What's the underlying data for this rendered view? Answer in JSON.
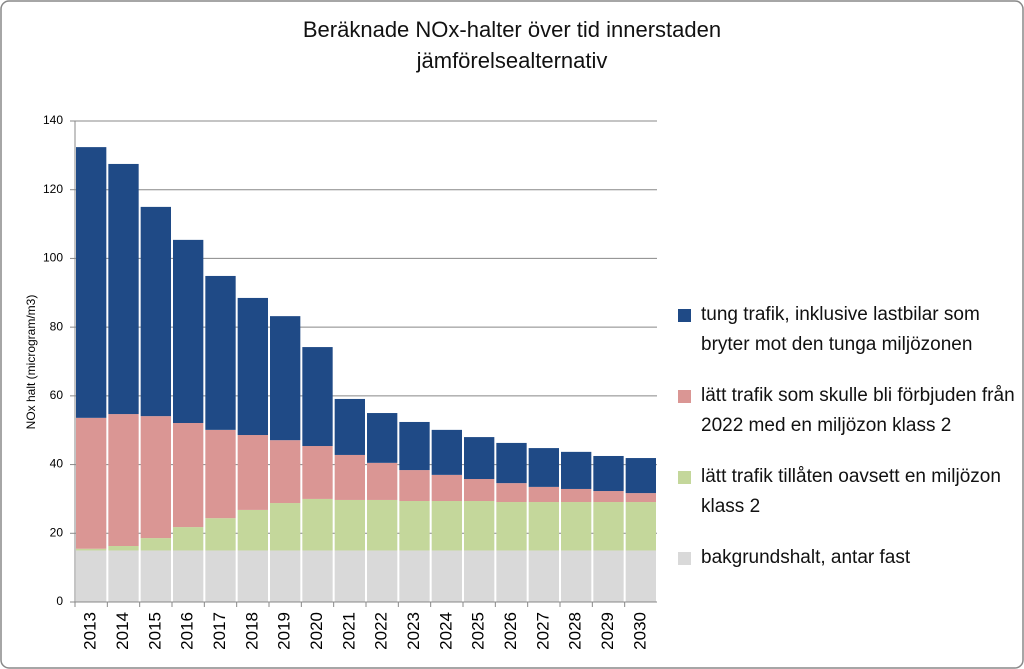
{
  "chart_data": {
    "type": "stacked_bar",
    "title": "Beräknade NOx-halter över tid innerstaden jämförelsealternativ",
    "y_label": "NOx halt (microgram/m3)",
    "categories": [
      "2013",
      "2014",
      "2015",
      "2016",
      "2017",
      "2018",
      "2019",
      "2020",
      "2021",
      "2022",
      "2023",
      "2024",
      "2025",
      "2026",
      "2027",
      "2028",
      "2029",
      "2030"
    ],
    "series": [
      {
        "name": "tung trafik, inklusive lastbilar som bryter mot den tunga miljözonen",
        "color": "#1f4a86",
        "values": [
          78.8,
          72.8,
          60.9,
          53.3,
          44.8,
          39.9,
          36.1,
          28.8,
          16.3,
          14.5,
          14.0,
          13.1,
          12.2,
          11.7,
          11.3,
          10.8,
          10.2,
          10.2
        ]
      },
      {
        "name": "lätt trafik som skulle bli förbjuden från 2022 med en miljözon klass 2",
        "color": "#da9694",
        "values": [
          38.1,
          38.4,
          35.5,
          30.3,
          25.7,
          21.8,
          18.3,
          15.4,
          13.1,
          10.8,
          9.0,
          7.6,
          6.4,
          5.5,
          4.4,
          3.8,
          3.2,
          2.6
        ]
      },
      {
        "name": "lätt trafik tillåten oavsett en miljözon klass 2",
        "color": "#c4d79b",
        "values": [
          0.5,
          1.3,
          3.6,
          6.8,
          9.4,
          11.8,
          13.8,
          15.0,
          14.7,
          14.7,
          14.4,
          14.4,
          14.4,
          14.1,
          14.1,
          14.1,
          14.1,
          14.1
        ]
      },
      {
        "name": "bakgrundshalt, antar fast",
        "color": "#d9d9d9",
        "values": [
          15,
          15,
          15,
          15,
          15,
          15,
          15,
          15,
          15,
          15,
          15,
          15,
          15,
          15,
          15,
          15,
          15,
          15
        ]
      }
    ],
    "ylim": [
      0,
      140
    ],
    "yticks": [
      0,
      20,
      40,
      60,
      80,
      100,
      120,
      140
    ],
    "grid": true
  }
}
